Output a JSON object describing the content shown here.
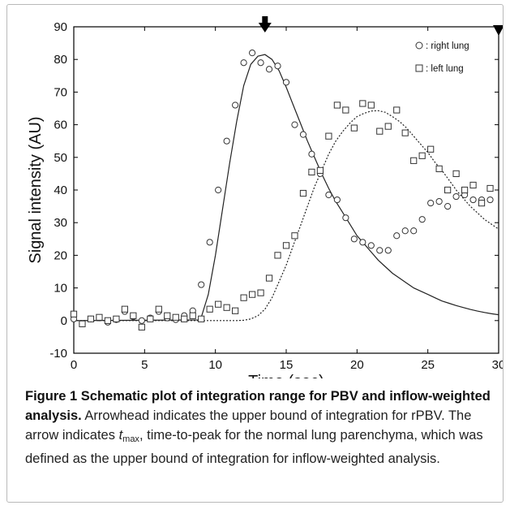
{
  "chart_data": {
    "type": "scatter",
    "xlabel": "Time (sec)",
    "ylabel": "Signal intensity (AU)",
    "xlim": [
      0,
      30
    ],
    "ylim": [
      -10,
      90
    ],
    "xticks": [
      0,
      5,
      10,
      15,
      20,
      25,
      30
    ],
    "yticks": [
      -10,
      0,
      10,
      20,
      30,
      40,
      50,
      60,
      70,
      80,
      90
    ],
    "grid": false,
    "legend_position": "top-right",
    "series": [
      {
        "name": ": right lung",
        "marker": "circle",
        "points": [
          [
            0,
            0.5
          ],
          [
            0.6,
            -1
          ],
          [
            1.2,
            0.5
          ],
          [
            1.8,
            0.8
          ],
          [
            2.4,
            -0.5
          ],
          [
            3.0,
            0.3
          ],
          [
            3.6,
            2.8
          ],
          [
            4.2,
            1.2
          ],
          [
            4.8,
            0
          ],
          [
            5.4,
            0.8
          ],
          [
            6.0,
            2.8
          ],
          [
            6.6,
            0.8
          ],
          [
            7.2,
            0.3
          ],
          [
            7.8,
            1.5
          ],
          [
            8.4,
            3.0
          ],
          [
            9.0,
            11
          ],
          [
            9.6,
            24
          ],
          [
            10.2,
            40
          ],
          [
            10.8,
            55
          ],
          [
            11.4,
            66
          ],
          [
            12.0,
            79
          ],
          [
            12.6,
            82
          ],
          [
            13.2,
            79
          ],
          [
            13.8,
            77
          ],
          [
            14.4,
            78
          ],
          [
            15.0,
            73
          ],
          [
            15.6,
            60
          ],
          [
            16.2,
            57
          ],
          [
            16.8,
            51
          ],
          [
            17.4,
            45
          ],
          [
            18.0,
            38.5
          ],
          [
            18.6,
            37
          ],
          [
            19.2,
            31.5
          ],
          [
            19.8,
            25
          ],
          [
            20.4,
            24
          ],
          [
            21.0,
            23
          ],
          [
            21.6,
            21.5
          ],
          [
            22.2,
            21.5
          ],
          [
            22.8,
            26
          ],
          [
            23.4,
            27.5
          ],
          [
            24.0,
            27.5
          ],
          [
            24.6,
            31
          ],
          [
            25.2,
            36
          ],
          [
            25.8,
            36.5
          ],
          [
            26.4,
            35
          ],
          [
            27.0,
            38
          ],
          [
            27.6,
            38.5
          ],
          [
            28.2,
            37
          ],
          [
            28.8,
            37
          ],
          [
            29.4,
            37
          ]
        ]
      },
      {
        "name": ": left lung",
        "marker": "square",
        "points": [
          [
            0,
            2
          ],
          [
            0.6,
            -1
          ],
          [
            1.2,
            0.5
          ],
          [
            1.8,
            1
          ],
          [
            2.4,
            0
          ],
          [
            3.0,
            0.5
          ],
          [
            3.6,
            3.5
          ],
          [
            4.2,
            1.5
          ],
          [
            4.8,
            -2
          ],
          [
            5.4,
            0.5
          ],
          [
            6.0,
            3.5
          ],
          [
            6.6,
            1.5
          ],
          [
            7.2,
            1
          ],
          [
            7.8,
            0.5
          ],
          [
            8.4,
            1.5
          ],
          [
            9.0,
            0.5
          ],
          [
            9.6,
            3.5
          ],
          [
            10.2,
            5
          ],
          [
            10.8,
            4
          ],
          [
            11.4,
            3
          ],
          [
            12.0,
            7
          ],
          [
            12.6,
            8
          ],
          [
            13.2,
            8.5
          ],
          [
            13.8,
            13
          ],
          [
            14.4,
            20
          ],
          [
            15.0,
            23
          ],
          [
            15.6,
            26
          ],
          [
            16.2,
            39
          ],
          [
            16.8,
            45.5
          ],
          [
            17.4,
            46
          ],
          [
            18.0,
            56.5
          ],
          [
            18.6,
            66
          ],
          [
            19.2,
            64.5
          ],
          [
            19.8,
            59
          ],
          [
            20.4,
            66.5
          ],
          [
            21.0,
            66
          ],
          [
            21.6,
            58
          ],
          [
            22.2,
            59.5
          ],
          [
            22.8,
            64.5
          ],
          [
            23.4,
            57.5
          ],
          [
            24.0,
            49
          ],
          [
            24.6,
            50.5
          ],
          [
            25.2,
            52.5
          ],
          [
            25.8,
            46.5
          ],
          [
            26.4,
            40
          ],
          [
            27.0,
            45
          ],
          [
            27.6,
            40
          ],
          [
            28.2,
            41.5
          ],
          [
            28.8,
            36
          ],
          [
            29.4,
            40.5
          ]
        ]
      },
      {
        "name": "",
        "style": "solid",
        "curve": "fit",
        "points": [
          [
            0,
            0
          ],
          [
            8.8,
            0.2
          ],
          [
            9.0,
            1
          ],
          [
            9.5,
            8
          ],
          [
            10.0,
            20
          ],
          [
            10.5,
            34
          ],
          [
            11.0,
            48
          ],
          [
            11.5,
            61
          ],
          [
            12.0,
            72
          ],
          [
            12.5,
            78.5
          ],
          [
            13.0,
            81
          ],
          [
            13.5,
            81.5
          ],
          [
            14.0,
            80
          ],
          [
            14.5,
            76.5
          ],
          [
            15.0,
            71.5
          ],
          [
            15.5,
            66
          ],
          [
            16.0,
            60.5
          ],
          [
            16.5,
            55
          ],
          [
            17.0,
            50
          ],
          [
            17.5,
            45
          ],
          [
            18.0,
            40.5
          ],
          [
            18.5,
            36.5
          ],
          [
            19.0,
            33
          ],
          [
            19.5,
            29.5
          ],
          [
            20.0,
            26
          ],
          [
            20.5,
            23.5
          ],
          [
            21.0,
            21
          ],
          [
            21.5,
            18.5
          ],
          [
            22.0,
            16.5
          ],
          [
            22.5,
            14.5
          ],
          [
            23.0,
            13
          ],
          [
            23.5,
            11.5
          ],
          [
            24.0,
            10
          ],
          [
            24.5,
            9
          ],
          [
            25.0,
            8
          ],
          [
            25.5,
            7
          ],
          [
            26.0,
            6
          ],
          [
            26.5,
            5.3
          ],
          [
            27.0,
            4.6
          ],
          [
            27.5,
            4
          ],
          [
            28.0,
            3.4
          ],
          [
            28.5,
            2.9
          ],
          [
            29.0,
            2.5
          ],
          [
            29.5,
            2.1
          ],
          [
            30.0,
            1.8
          ]
        ]
      },
      {
        "name": "",
        "style": "dotted",
        "curve": "fit",
        "points": [
          [
            0,
            0
          ],
          [
            11.5,
            0
          ],
          [
            12.0,
            0.1
          ],
          [
            12.5,
            0.5
          ],
          [
            13.0,
            1.5
          ],
          [
            13.5,
            3.5
          ],
          [
            14.0,
            7
          ],
          [
            14.5,
            12
          ],
          [
            15.0,
            17
          ],
          [
            15.5,
            23
          ],
          [
            16.0,
            29
          ],
          [
            16.5,
            35
          ],
          [
            17.0,
            41
          ],
          [
            17.5,
            46
          ],
          [
            18.0,
            51
          ],
          [
            18.5,
            55
          ],
          [
            19.0,
            58
          ],
          [
            19.5,
            60.5
          ],
          [
            20.0,
            62.5
          ],
          [
            20.5,
            63.5
          ],
          [
            21.0,
            64.2
          ],
          [
            21.5,
            64.3
          ],
          [
            22.0,
            63.8
          ],
          [
            22.5,
            62.5
          ],
          [
            23.0,
            61
          ],
          [
            23.5,
            59
          ],
          [
            24.0,
            56.5
          ],
          [
            24.5,
            54
          ],
          [
            25.0,
            51.5
          ],
          [
            25.5,
            48.5
          ],
          [
            26.0,
            46
          ],
          [
            26.5,
            43
          ],
          [
            27.0,
            40
          ],
          [
            27.5,
            37.5
          ],
          [
            28.0,
            35
          ],
          [
            28.5,
            33
          ],
          [
            29.0,
            31
          ],
          [
            29.5,
            29.5
          ],
          [
            30.0,
            28
          ]
        ]
      }
    ],
    "annotations": [
      {
        "kind": "arrow-down",
        "x": 13.5
      },
      {
        "kind": "arrowhead-down",
        "x": 30
      }
    ]
  },
  "caption": {
    "bold": "Figure 1 Schematic plot of integration range for PBV and inflow-weighted analysis.",
    "text_a": " Arrowhead indicates the upper bound of integration for rPBV. The arrow indicates ",
    "tmax_t": "t",
    "tmax_sub": "max",
    "text_b": ", time-to-peak for the normal lung parenchyma, which was defined as the upper bound of integration for inflow-weighted analysis."
  }
}
